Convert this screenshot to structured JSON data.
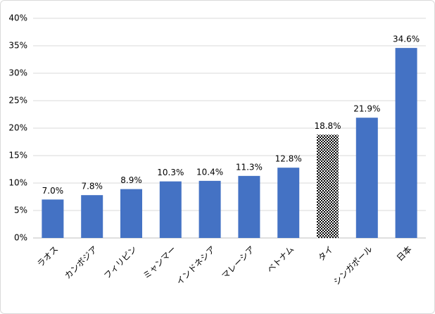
{
  "chart_data": {
    "type": "bar",
    "categories": [
      "ラオス",
      "カンボジア",
      "フィリピン",
      "ミャンマー",
      "インドネシア",
      "マレーシア",
      "ベトナム",
      "タイ",
      "シンガポール",
      "日本"
    ],
    "values": [
      7.0,
      7.8,
      8.9,
      10.3,
      10.4,
      11.3,
      12.8,
      18.8,
      21.9,
      34.6
    ],
    "value_labels": [
      "7.0%",
      "7.8%",
      "8.9%",
      "10.3%",
      "10.4%",
      "11.3%",
      "12.8%",
      "18.8%",
      "21.9%",
      "34.6%"
    ],
    "colors": [
      "#4472c4",
      "#4472c4",
      "#4472c4",
      "#4472c4",
      "#4472c4",
      "#4472c4",
      "#4472c4",
      "#c00000",
      "#4472c4",
      "#4472c4"
    ],
    "fills": [
      "solid",
      "solid",
      "solid",
      "solid",
      "solid",
      "solid",
      "solid",
      "checker",
      "solid",
      "solid"
    ],
    "ylim": [
      0,
      40
    ],
    "yticks": [
      {
        "value": 0,
        "label": "0%"
      },
      {
        "value": 5,
        "label": "5%"
      },
      {
        "value": 10,
        "label": "10%"
      },
      {
        "value": 15,
        "label": "15%"
      },
      {
        "value": 20,
        "label": "20%"
      },
      {
        "value": 25,
        "label": "25%"
      },
      {
        "value": 30,
        "label": "30%"
      },
      {
        "value": 35,
        "label": "35%"
      },
      {
        "value": 40,
        "label": "40%"
      }
    ],
    "grid": true
  }
}
